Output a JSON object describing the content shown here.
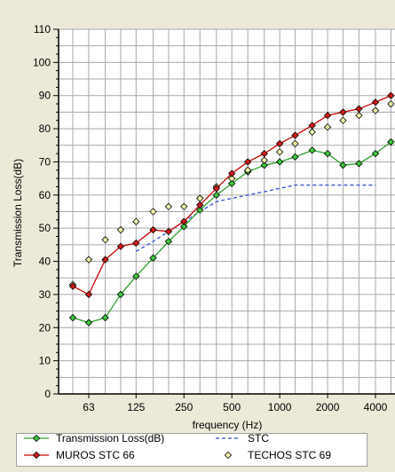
{
  "chart_data": {
    "type": "line",
    "xscale": "log",
    "xlabel": "frequency (Hz)",
    "ylabel": "Transmission Loss(dB)",
    "ylim": [
      0,
      110
    ],
    "yticks": [
      0,
      10,
      20,
      30,
      40,
      50,
      60,
      70,
      80,
      90,
      100,
      110
    ],
    "xticks": [
      63,
      125,
      250,
      500,
      1000,
      2000,
      4000
    ],
    "xtick_labels": [
      "63",
      "125",
      "250",
      "500",
      "1000",
      "2000",
      "4000"
    ],
    "grid": true,
    "legend_position": "bottom",
    "x": [
      50,
      63,
      80,
      100,
      125,
      160,
      200,
      250,
      315,
      400,
      500,
      630,
      800,
      1000,
      1250,
      1600,
      2000,
      2500,
      3150,
      4000,
      5000
    ],
    "series": [
      {
        "name": "Transmission Loss(dB)",
        "color": "#3cc83c",
        "line_color": "#2ca02c",
        "marker": "diamond",
        "values": [
          23,
          21.5,
          23,
          30,
          35.5,
          41,
          46,
          50.5,
          55.5,
          60,
          63.5,
          67,
          69,
          70,
          71.5,
          73.5,
          72.5,
          69,
          69.5,
          72.5,
          76
        ]
      },
      {
        "name": "STC",
        "color": "#3050d0",
        "dashed": true,
        "x": [
          125,
          160,
          200,
          250,
          315,
          400,
          500,
          630,
          800,
          1000,
          1250,
          1600,
          2000,
          2500,
          3150,
          4000
        ],
        "values": [
          43,
          46,
          49,
          52,
          55,
          58,
          59,
          60,
          61,
          62,
          63,
          63,
          63,
          63,
          63,
          63
        ]
      },
      {
        "name": "MUROS STC 66",
        "color": "#d01818",
        "line_color": "#cc0000",
        "marker": "diamond",
        "values": [
          32.5,
          30,
          40.5,
          44.5,
          45.5,
          49.5,
          49,
          52,
          57,
          62,
          66.5,
          70,
          72.5,
          75.5,
          78,
          81,
          84,
          85,
          86,
          88,
          90
        ]
      },
      {
        "name": "TECHOS STC 69",
        "color": "#f2f0a8",
        "marker": "diamond",
        "line": false,
        "values": [
          33,
          40.5,
          46.5,
          49.5,
          52,
          55,
          56.5,
          56.5,
          59,
          62.5,
          65,
          67.5,
          70.5,
          73,
          75.5,
          79,
          80.5,
          82.5,
          84,
          85.5,
          87.5
        ]
      }
    ]
  }
}
